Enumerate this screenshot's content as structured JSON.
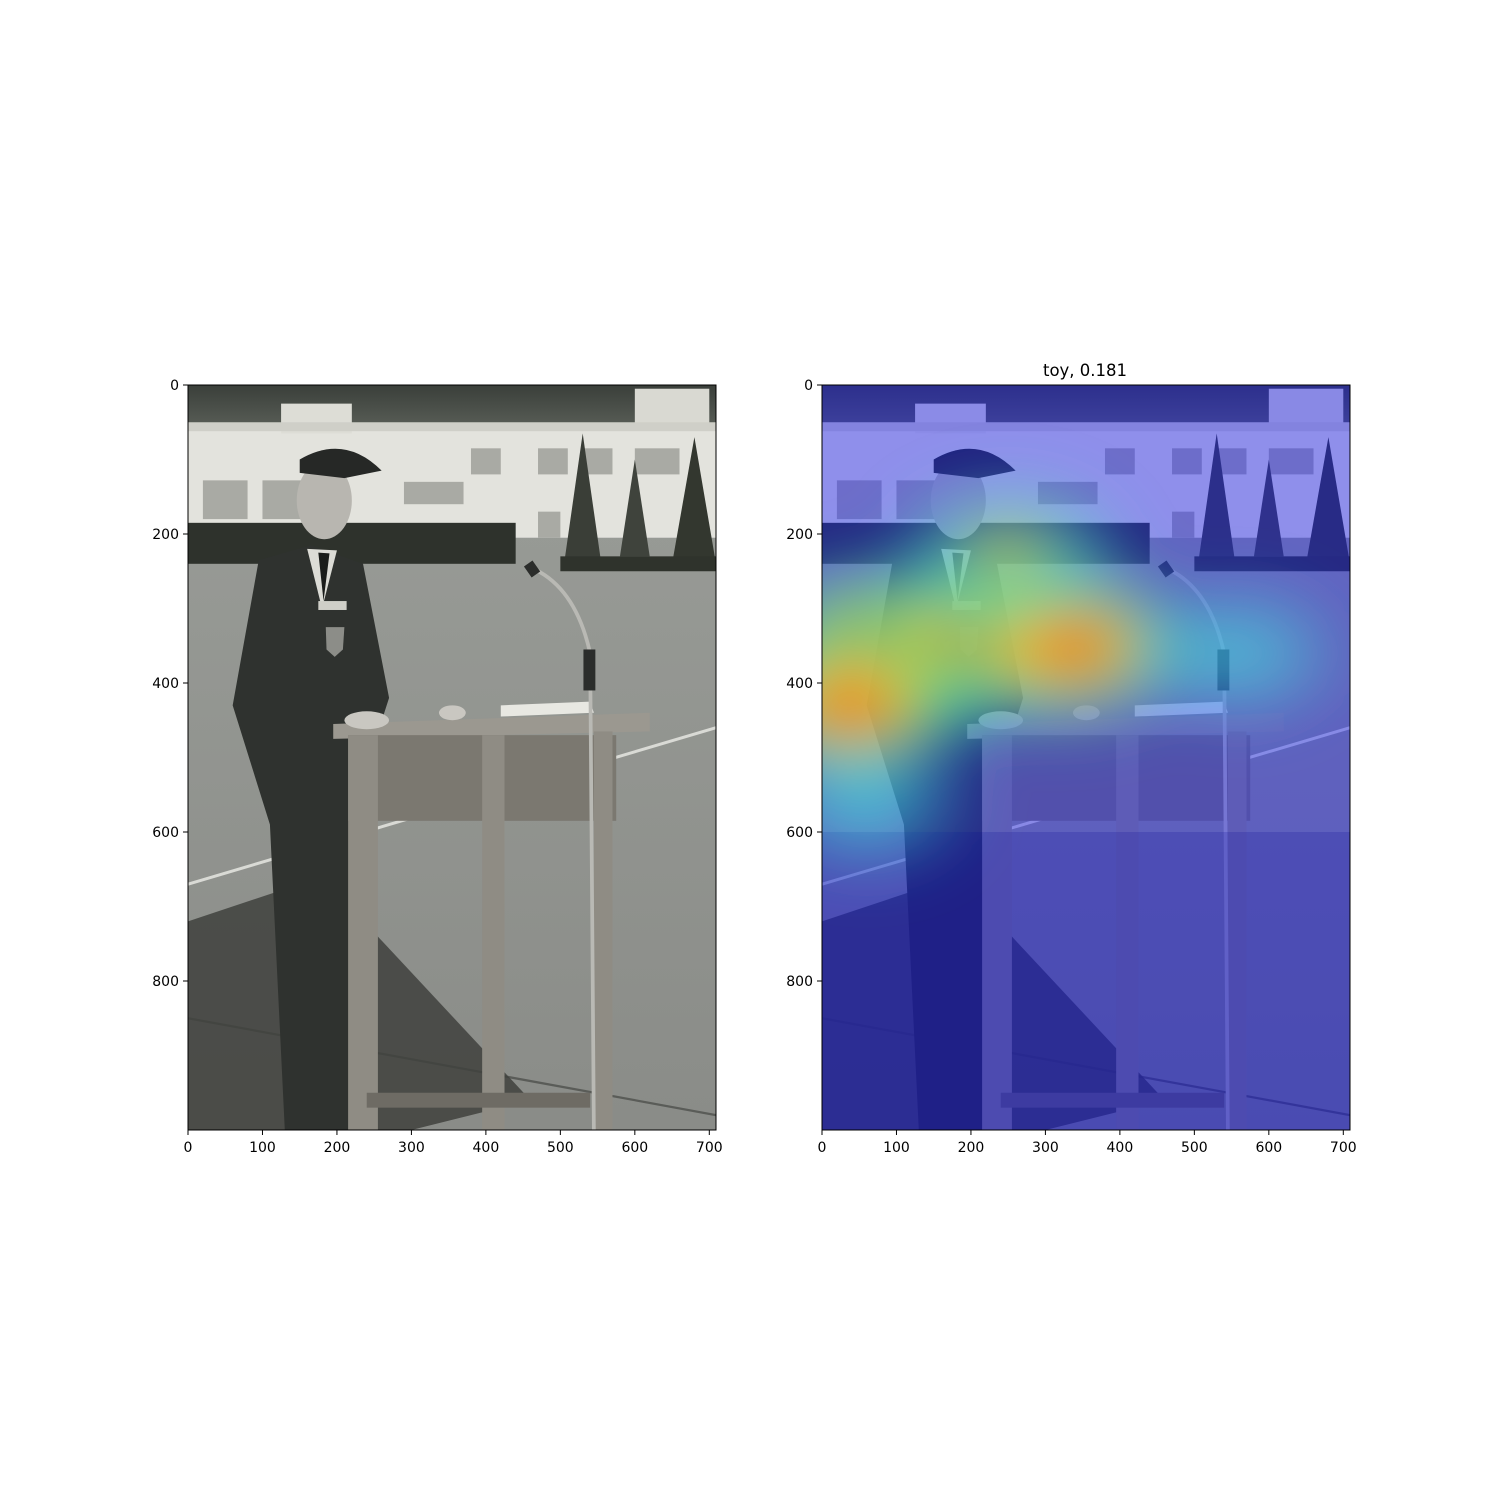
{
  "chart_data": [
    {
      "type": "image",
      "panel": "original-photo",
      "title": "",
      "image_extent": {
        "width": 709,
        "height": 1000
      },
      "xlim": [
        0,
        709
      ],
      "ylim": [
        1000,
        0
      ],
      "xticks": [
        0,
        100,
        200,
        300,
        400,
        500,
        600,
        700
      ],
      "yticks": [
        0,
        200,
        400,
        600,
        800
      ],
      "grid": false
    },
    {
      "type": "heatmap",
      "panel": "saliency-overlay",
      "title": "toy, 0.181",
      "colormap": "jet",
      "image_extent": {
        "width": 709,
        "height": 1000
      },
      "xlim": [
        0,
        709
      ],
      "ylim": [
        1000,
        0
      ],
      "xticks": [
        0,
        100,
        200,
        300,
        400,
        500,
        600,
        700
      ],
      "yticks": [
        0,
        200,
        400,
        600,
        800
      ],
      "grid": false,
      "hotspots": [
        {
          "x": 80,
          "y": 350,
          "intensity": 1.0
        },
        {
          "x": 200,
          "y": 350,
          "intensity": 0.95
        },
        {
          "x": 330,
          "y": 350,
          "intensity": 0.9
        },
        {
          "x": 40,
          "y": 430,
          "intensity": 0.85
        },
        {
          "x": 250,
          "y": 230,
          "intensity": 0.6
        },
        {
          "x": 560,
          "y": 360,
          "intensity": 0.45
        },
        {
          "x": 60,
          "y": 560,
          "intensity": 0.45
        }
      ]
    }
  ]
}
